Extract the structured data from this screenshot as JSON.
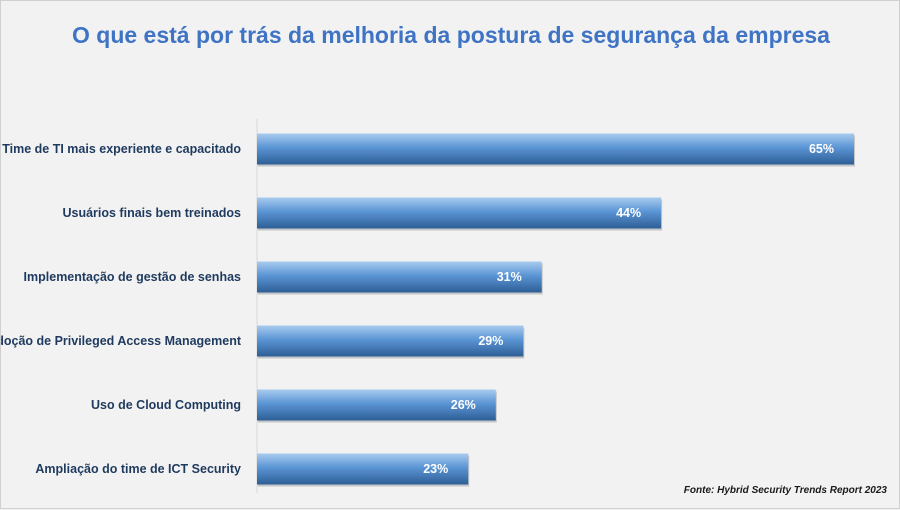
{
  "chart_data": {
    "type": "bar",
    "orientation": "horizontal",
    "title": "O que está por trás da melhoria da postura de segurança da empresa",
    "categories": [
      "Time de TI mais experiente e capacitado",
      "Usuários finais bem treinados",
      "Implementação de gestão de senhas",
      "Adoção de Privileged Access Management",
      "Uso de Cloud Computing",
      "Ampliação do time de ICT Security"
    ],
    "values": [
      65,
      44,
      31,
      29,
      26,
      23
    ],
    "data_labels": [
      "65%",
      "44%",
      "31%",
      "29%",
      "26%",
      "23%"
    ],
    "xlim": [
      0,
      65
    ],
    "grid": false,
    "legend": "none",
    "bar_colors": {
      "top": "#a9cbee",
      "mid": "#5b95d5",
      "bottom": "#2d5e95"
    }
  },
  "source": "Fonte: Hybrid Security Trends Report 2023"
}
